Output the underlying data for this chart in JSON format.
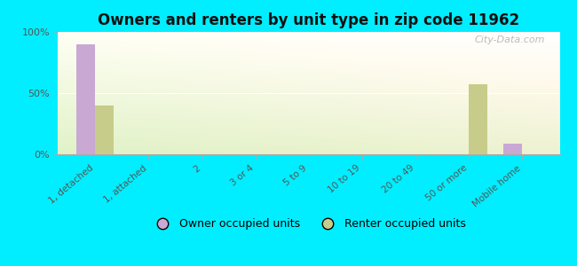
{
  "title": "Owners and renters by unit type in zip code 11962",
  "categories": [
    "1, detached",
    "1, attached",
    "2",
    "3 or 4",
    "5 to 9",
    "10 to 19",
    "20 to 49",
    "50 or more",
    "Mobile home"
  ],
  "owner_values": [
    90,
    0,
    0,
    0,
    0,
    0,
    0,
    0,
    9
  ],
  "renter_values": [
    40,
    0,
    0,
    0,
    0,
    0,
    0,
    57,
    0
  ],
  "owner_color": "#c9a8d4",
  "renter_color": "#c8cc8a",
  "background_outer": "#00eeff",
  "ylim": [
    0,
    100
  ],
  "yticks": [
    0,
    50,
    100
  ],
  "ytick_labels": [
    "0%",
    "50%",
    "100%"
  ],
  "bar_width": 0.35,
  "legend_owner": "Owner occupied units",
  "legend_renter": "Renter occupied units",
  "watermark": "City-Data.com"
}
